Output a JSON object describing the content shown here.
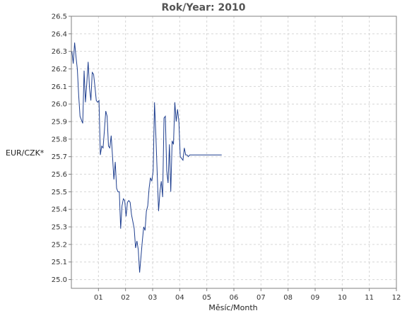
{
  "chart_data": {
    "type": "line",
    "title": "Rok/Year: 2010",
    "xlabel": "Měsíc/Month",
    "ylabel": "EUR/CZK*",
    "x_tick_labels": [
      "01",
      "02",
      "03",
      "04",
      "05",
      "06",
      "07",
      "08",
      "09",
      "10",
      "11",
      "12"
    ],
    "y_tick_labels": [
      "25.0",
      "25.1",
      "25.2",
      "25.3",
      "25.4",
      "25.5",
      "25.6",
      "25.7",
      "25.8",
      "25.9",
      "26.0",
      "26.1",
      "26.2",
      "26.3",
      "26.4",
      "26.5"
    ],
    "ylim": [
      24.95,
      26.5
    ],
    "xlim": [
      0,
      12
    ],
    "grid": true,
    "legend": "none",
    "colors": {
      "line": "#1f3f8f",
      "grid": "#d6d6d6",
      "axis": "#808080"
    },
    "series": [
      {
        "x": [
          0.02,
          0.07,
          0.12,
          0.17,
          0.22,
          0.27,
          0.32,
          0.37,
          0.42,
          0.47,
          0.52,
          0.57,
          0.62,
          0.67,
          0.72,
          0.77,
          0.82,
          0.87,
          0.92,
          0.97,
          1.02,
          1.07,
          1.12,
          1.17,
          1.22,
          1.27,
          1.32,
          1.37,
          1.42,
          1.47,
          1.52,
          1.57,
          1.62,
          1.67,
          1.72,
          1.77,
          1.82,
          1.87,
          1.92,
          1.97,
          2.02,
          2.07,
          2.12,
          2.17,
          2.22,
          2.27,
          2.32,
          2.37,
          2.42,
          2.47,
          2.52,
          2.57,
          2.62,
          2.67,
          2.72,
          2.77,
          2.82,
          2.87,
          2.92,
          2.97,
          3.02,
          3.07,
          3.12,
          3.17,
          3.22,
          3.27,
          3.32,
          3.37,
          3.42,
          3.47,
          3.52,
          3.57,
          3.62,
          3.67,
          3.72,
          3.77,
          3.82,
          3.87,
          3.92,
          3.97,
          4.02,
          4.07,
          4.12,
          4.17,
          4.22,
          4.27,
          4.32,
          4.37,
          4.42,
          4.47,
          4.52,
          4.57,
          4.62,
          4.67,
          4.72,
          4.77,
          4.82,
          4.87,
          4.92,
          4.97,
          5.02,
          5.07,
          5.12,
          5.17,
          5.22,
          5.27,
          5.32,
          5.37,
          5.42,
          5.47,
          5.52,
          5.55
        ],
        "values": [
          26.3,
          26.23,
          26.35,
          26.27,
          26.2,
          26.05,
          25.93,
          25.91,
          25.89,
          26.19,
          26.01,
          26.12,
          26.24,
          26.09,
          26.02,
          26.18,
          26.17,
          26.1,
          26.02,
          26.01,
          26.02,
          25.71,
          25.76,
          25.75,
          25.85,
          25.96,
          25.93,
          25.76,
          25.75,
          25.82,
          25.7,
          25.57,
          25.67,
          25.52,
          25.5,
          25.5,
          25.29,
          25.42,
          25.46,
          25.45,
          25.36,
          25.44,
          25.45,
          25.44,
          25.37,
          25.33,
          25.29,
          25.18,
          25.22,
          25.17,
          25.04,
          25.13,
          25.22,
          25.3,
          25.28,
          25.39,
          25.42,
          25.52,
          25.58,
          25.56,
          25.62,
          26.01,
          25.82,
          25.6,
          25.39,
          25.5,
          25.56,
          25.47,
          25.92,
          25.93,
          25.62,
          25.55,
          25.77,
          25.5,
          25.79,
          25.77,
          26.01,
          25.9,
          25.97,
          25.9,
          25.7,
          25.69,
          25.68,
          25.75,
          25.71,
          25.71,
          25.7,
          25.71,
          25.71,
          25.71,
          25.71,
          25.71,
          25.71,
          25.71,
          25.71,
          25.71,
          25.71,
          25.71,
          25.71,
          25.71,
          25.71,
          25.71,
          25.71,
          25.71,
          25.71,
          25.71,
          25.71,
          25.71,
          25.71,
          25.71,
          25.71,
          25.71
        ]
      }
    ]
  }
}
